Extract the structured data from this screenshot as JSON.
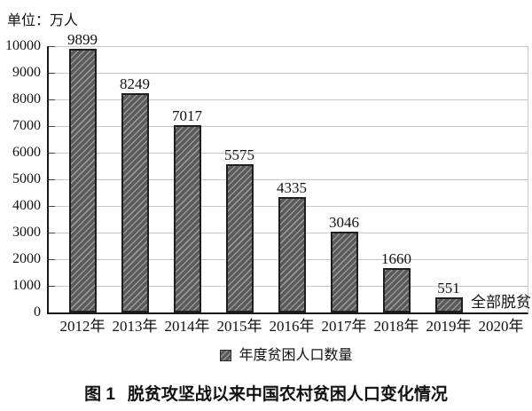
{
  "header": {
    "unit_label": "单位：万人"
  },
  "chart_data": {
    "type": "bar",
    "title": "图 1　脱贫攻坚战以来中国农村贫困人口变化情况",
    "unit_label": "单位：万人",
    "categories": [
      "2012年",
      "2013年",
      "2014年",
      "2015年",
      "2016年",
      "2017年",
      "2018年",
      "2019年",
      "2020年"
    ],
    "values": [
      9899,
      8249,
      7017,
      5575,
      4335,
      3046,
      1660,
      551,
      null
    ],
    "bar_value_labels": [
      "9899",
      "8249",
      "7017",
      "5575",
      "4335",
      "3046",
      "1660",
      "551",
      ""
    ],
    "annotation": {
      "category": "2020年",
      "text": "全部脱贫"
    },
    "legend_entries": [
      {
        "label": "年度贫困人口数量",
        "swatch": "hatched-dark-gray-square"
      }
    ],
    "legend_position": "bottom-center",
    "xlabel": "",
    "ylabel": "",
    "ylim": [
      0,
      10000
    ],
    "ytick_step": 1000,
    "yticks": [
      0,
      1000,
      2000,
      3000,
      4000,
      5000,
      6000,
      7000,
      8000,
      9000,
      10000
    ],
    "grid": true,
    "hatch_direction": "diagonal-forward-slash",
    "colors": {
      "bar_fill": "#5a5a5a",
      "bar_hatch": "#969696",
      "bar_border": "#1f1f1f",
      "gridline": "#c8c8c8",
      "axis": "#1a1a1a",
      "text": "#111111",
      "background": "#ffffff"
    }
  },
  "caption": {
    "figure_label": "图 1",
    "text": "脱贫攻坚战以来中国农村贫困人口变化情况"
  }
}
